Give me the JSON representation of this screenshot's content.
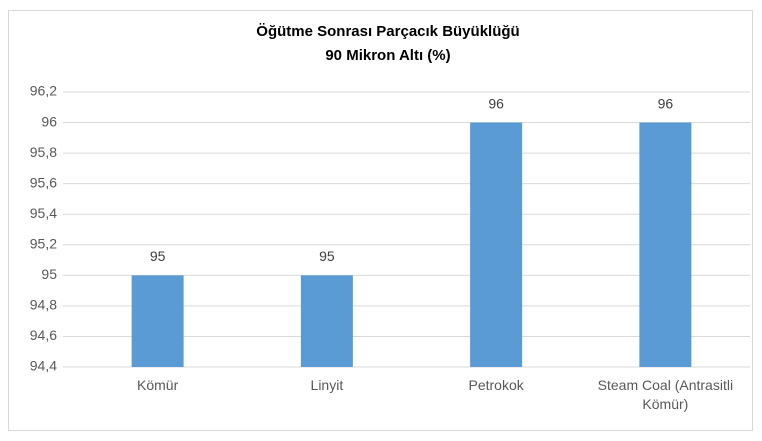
{
  "chart_data": {
    "type": "bar",
    "title": [
      "Öğütme Sonrası Parçacık Büyüklüğü",
      "90 Mikron Altı (%)"
    ],
    "categories": [
      "Kömür",
      "Linyit",
      "Petrokok",
      "Steam Coal (Antrasitli Kömür)"
    ],
    "values": [
      95,
      95,
      96,
      96
    ],
    "color": "#5b9bd5",
    "ylim": [
      94.4,
      96.2
    ],
    "yticks": [
      {
        "value": 94.4,
        "label": "94,4"
      },
      {
        "value": 94.6,
        "label": "94,6"
      },
      {
        "value": 94.8,
        "label": "94,8"
      },
      95,
      {
        "value": 95.2,
        "label": "95,2"
      },
      {
        "value": 95.4,
        "label": "95,4"
      },
      {
        "value": 95.6,
        "label": "95,6"
      },
      {
        "value": 95.8,
        "label": "95,8"
      },
      96,
      {
        "value": 96.2,
        "label": "96,2"
      }
    ],
    "grid": true
  }
}
